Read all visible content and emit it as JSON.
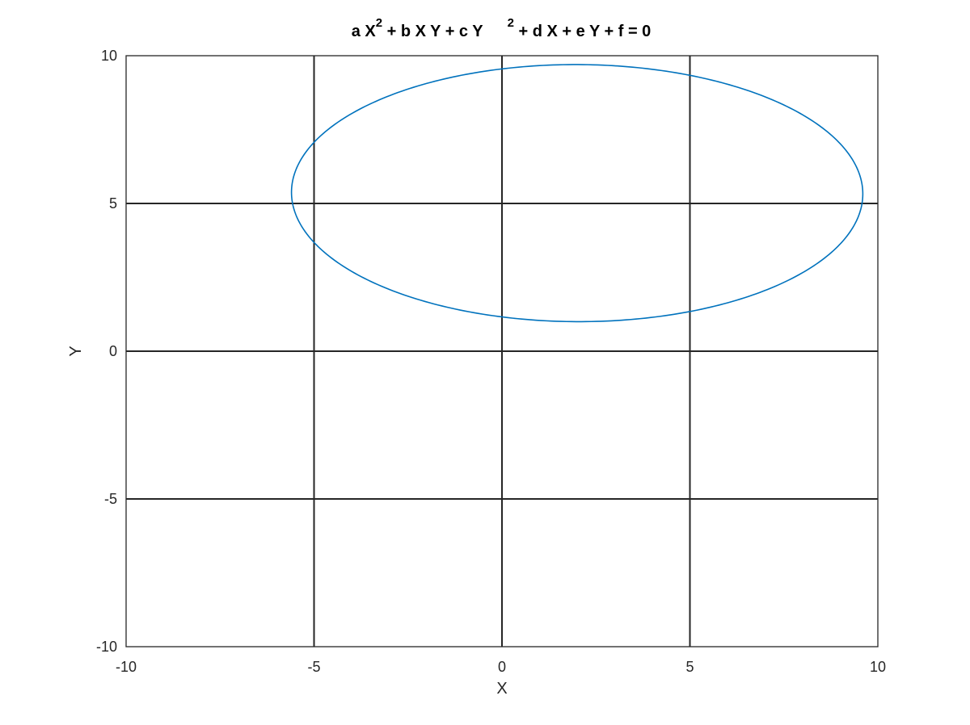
{
  "chart_data": {
    "type": "line",
    "title": "a X^2 + b X Y + c Y^2 + d X + e Y + f = 0",
    "title_parts": {
      "part1": "a X",
      "sup1": "2",
      "part2": " + b X Y + c Y",
      "sup2": "2",
      "part3": " + d X + e Y + f = 0"
    },
    "xlabel": "X",
    "ylabel": "Y",
    "xlim": [
      -10,
      10
    ],
    "ylim": [
      -10,
      10
    ],
    "xticks": [
      -10,
      -5,
      0,
      5,
      10
    ],
    "yticks": [
      -10,
      -5,
      0,
      5,
      10
    ],
    "xtick_labels": [
      "-10",
      "-5",
      "0",
      "5",
      "10"
    ],
    "ytick_labels": [
      "-10",
      "-5",
      "0",
      "5",
      "10"
    ],
    "grid": true,
    "series": [
      {
        "kind": "ellipse",
        "center": [
          2.0,
          5.35
        ],
        "semi_axes": [
          7.6,
          4.35
        ],
        "rotation_deg": -0.3,
        "color": "#0072BD"
      }
    ],
    "colors": {
      "axes": "#262626",
      "grid": "#262626",
      "curve": "#0072BD"
    }
  }
}
